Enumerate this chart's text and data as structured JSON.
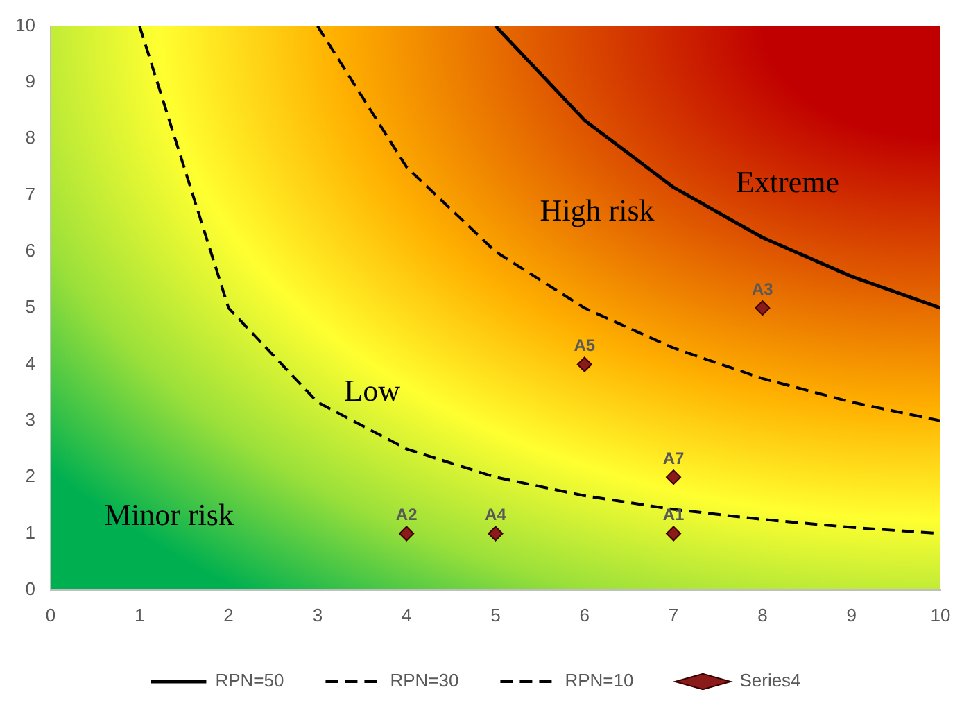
{
  "chart_data": {
    "type": "line",
    "xlim": [
      0,
      10
    ],
    "xticks": [
      0,
      1,
      2,
      3,
      4,
      5,
      6,
      7,
      8,
      9,
      10
    ],
    "ylim": [
      0,
      10
    ],
    "yticks": [
      0,
      1,
      2,
      3,
      4,
      5,
      6,
      7,
      8,
      9,
      10
    ],
    "grid": false,
    "legend": "bottom",
    "series": [
      {
        "name": "RPN=50",
        "line_style": "solid",
        "color": "#000000",
        "x": [
          5,
          6,
          7,
          8,
          9,
          10
        ],
        "values": [
          10,
          8.33,
          7.14,
          6.25,
          5.56,
          5
        ]
      },
      {
        "name": "RPN=30",
        "line_style": "dashed",
        "color": "#000000",
        "x": [
          3,
          4,
          5,
          6,
          7,
          8,
          9,
          10
        ],
        "values": [
          10,
          7.5,
          6,
          5,
          4.29,
          3.75,
          3.33,
          3
        ]
      },
      {
        "name": "RPN=10",
        "line_style": "dashed",
        "color": "#000000",
        "x": [
          1,
          2,
          3,
          4,
          5,
          6,
          7,
          8,
          9,
          10
        ],
        "values": [
          10,
          5,
          3.33,
          2.5,
          2,
          1.67,
          1.43,
          1.25,
          1.11,
          1
        ]
      },
      {
        "name": "Series4",
        "type": "scatter",
        "marker": "diamond",
        "color": "#8b1a1a",
        "x": [
          7,
          4,
          8,
          5,
          6,
          7
        ],
        "values": [
          1,
          1,
          5,
          1,
          4,
          2
        ]
      }
    ],
    "annotations": [
      {
        "text": "A1",
        "x": 7,
        "y": 1
      },
      {
        "text": "A2",
        "x": 4,
        "y": 1
      },
      {
        "text": "A3",
        "x": 8,
        "y": 5
      },
      {
        "text": "A4",
        "x": 5,
        "y": 1
      },
      {
        "text": "A5",
        "x": 6,
        "y": 4
      },
      {
        "text": "A7",
        "x": 7,
        "y": 2
      },
      "Minor risk",
      "Low",
      "High risk",
      "Extreme"
    ]
  }
}
